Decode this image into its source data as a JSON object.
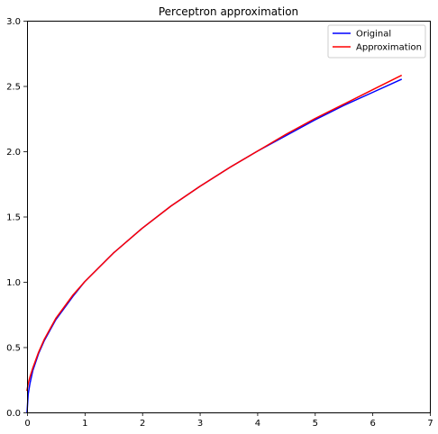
{
  "chart_data": {
    "type": "line",
    "title": "Perceptron approximation",
    "xlabel": "",
    "ylabel": "",
    "xlim": [
      0,
      7
    ],
    "ylim": [
      0,
      3.0
    ],
    "xticks": [
      0,
      1,
      2,
      3,
      4,
      5,
      6,
      7
    ],
    "xtick_labels": [
      "0",
      "1",
      "2",
      "3",
      "4",
      "5",
      "6",
      "7"
    ],
    "yticks": [
      0,
      0.5,
      1.0,
      1.5,
      2.0,
      2.5,
      3.0
    ],
    "ytick_labels": [
      "0.0",
      "0.5",
      "1.0",
      "1.5",
      "2.0",
      "2.5",
      "3.0"
    ],
    "grid": false,
    "legend": "top-right",
    "series": [
      {
        "name": "Original",
        "color": "#0000ff",
        "x": [
          0,
          0.02,
          0.05,
          0.1,
          0.2,
          0.3,
          0.5,
          0.8,
          1.0,
          1.5,
          2.0,
          2.5,
          3.0,
          3.5,
          4.0,
          4.5,
          5.0,
          5.5,
          6.0,
          6.5
        ],
        "y": [
          0,
          0.14,
          0.22,
          0.32,
          0.45,
          0.55,
          0.71,
          0.89,
          1.0,
          1.22,
          1.41,
          1.58,
          1.73,
          1.87,
          2.0,
          2.12,
          2.24,
          2.35,
          2.45,
          2.55
        ]
      },
      {
        "name": "Approximation",
        "color": "#ff0000",
        "x": [
          0,
          0.02,
          0.05,
          0.1,
          0.2,
          0.3,
          0.5,
          0.8,
          1.0,
          1.5,
          2.0,
          2.5,
          3.0,
          3.5,
          4.0,
          4.5,
          5.0,
          5.5,
          6.0,
          6.5
        ],
        "y": [
          0.17,
          0.22,
          0.27,
          0.34,
          0.46,
          0.56,
          0.72,
          0.9,
          1.0,
          1.22,
          1.41,
          1.58,
          1.73,
          1.87,
          2.0,
          2.13,
          2.25,
          2.36,
          2.47,
          2.58
        ]
      }
    ]
  }
}
